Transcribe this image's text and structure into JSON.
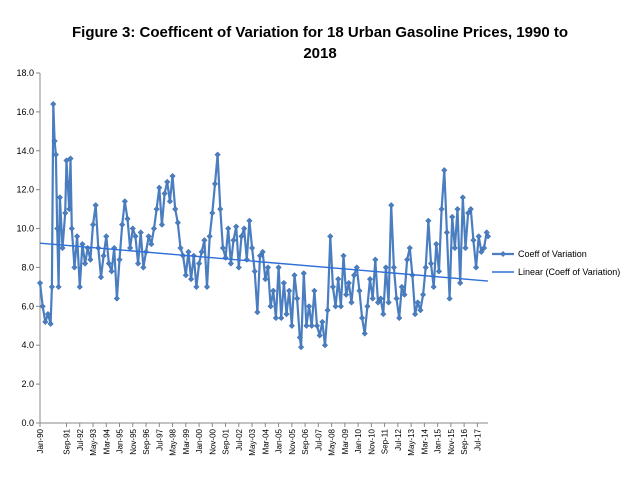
{
  "chart_data": {
    "type": "line",
    "title": [
      "Figure 3: Coefficent of Variation for 18 Urban Gasoline Prices, 1990 to",
      "2018"
    ],
    "xlabel": "",
    "ylabel": "",
    "ylim": [
      0,
      18
    ],
    "yticks": [
      "0.0",
      "2.0",
      "4.0",
      "6.0",
      "8.0",
      "10.0",
      "12.0",
      "14.0",
      "16.0",
      "18.0"
    ],
    "x_start": "1990-01",
    "x_end": "2018-03",
    "xtick_labels": [
      "Jan-90",
      "Sep-91",
      "May-93",
      "Jan-95",
      "Sep-96",
      "May-98",
      "Jan-00",
      "Sep-01",
      "May-03",
      "Jan-05",
      "Sep-06",
      "May-08",
      "Jan-10",
      "Sep-11",
      "May-13",
      "Jan-15",
      "Sep-16"
    ],
    "xtick_labels_offset": [
      "Jul-92",
      "Mar-94",
      "Nov-95",
      "Jul-97",
      "Mar-99",
      "Nov-00",
      "Jul-02",
      "Mar-04",
      "Nov-05",
      "Jul-07",
      "Mar-09",
      "Nov-10",
      "Jul-12",
      "Mar-14",
      "Nov-15",
      "Jul-17"
    ],
    "grid": false,
    "legend_position": "right",
    "colors": {
      "series": "#4a7ec0",
      "trend": "#2f6fd6"
    },
    "series": [
      {
        "name": "Coeff of Variation",
        "marker": "diamond",
        "anchors": [
          [
            "1990-01",
            7.2
          ],
          [
            "1990-03",
            6.0
          ],
          [
            "1990-05",
            5.2
          ],
          [
            "1990-07",
            5.6
          ],
          [
            "1990-09",
            5.1
          ],
          [
            "1990-10",
            7.0
          ],
          [
            "1990-11",
            16.4
          ],
          [
            "1990-12",
            14.5
          ],
          [
            "1991-01",
            13.8
          ],
          [
            "1991-02",
            10.0
          ],
          [
            "1991-03",
            7.0
          ],
          [
            "1991-04",
            11.6
          ],
          [
            "1991-06",
            9.0
          ],
          [
            "1991-08",
            10.8
          ],
          [
            "1991-09",
            13.5
          ],
          [
            "1991-10",
            12.3
          ],
          [
            "1991-11",
            11.0
          ],
          [
            "1991-12",
            13.6
          ],
          [
            "1992-01",
            10.0
          ],
          [
            "1992-03",
            8.0
          ],
          [
            "1992-05",
            9.6
          ],
          [
            "1992-07",
            7.0
          ],
          [
            "1992-09",
            9.2
          ],
          [
            "1992-11",
            8.2
          ],
          [
            "1993-01",
            9.0
          ],
          [
            "1993-03",
            8.4
          ],
          [
            "1993-05",
            10.2
          ],
          [
            "1993-07",
            11.2
          ],
          [
            "1993-09",
            9.0
          ],
          [
            "1993-11",
            7.5
          ],
          [
            "1994-01",
            8.6
          ],
          [
            "1994-03",
            9.6
          ],
          [
            "1994-05",
            8.2
          ],
          [
            "1994-07",
            7.8
          ],
          [
            "1994-09",
            9.0
          ],
          [
            "1994-11",
            6.4
          ],
          [
            "1995-01",
            8.4
          ],
          [
            "1995-03",
            10.2
          ],
          [
            "1995-05",
            11.4
          ],
          [
            "1995-07",
            10.5
          ],
          [
            "1995-09",
            9.0
          ],
          [
            "1995-11",
            10.0
          ],
          [
            "1996-01",
            9.6
          ],
          [
            "1996-03",
            8.2
          ],
          [
            "1996-05",
            9.8
          ],
          [
            "1996-07",
            8.0
          ],
          [
            "1996-09",
            8.8
          ],
          [
            "1996-11",
            9.6
          ],
          [
            "1997-01",
            9.2
          ],
          [
            "1997-03",
            10.0
          ],
          [
            "1997-05",
            11.0
          ],
          [
            "1997-07",
            12.1
          ],
          [
            "1997-09",
            10.2
          ],
          [
            "1997-11",
            11.8
          ],
          [
            "1998-01",
            12.4
          ],
          [
            "1998-03",
            11.4
          ],
          [
            "1998-05",
            12.7
          ],
          [
            "1998-07",
            11.0
          ],
          [
            "1998-09",
            10.3
          ],
          [
            "1998-11",
            9.0
          ],
          [
            "1999-01",
            8.6
          ],
          [
            "1999-03",
            7.6
          ],
          [
            "1999-05",
            8.8
          ],
          [
            "1999-07",
            7.4
          ],
          [
            "1999-09",
            8.6
          ],
          [
            "1999-11",
            7.0
          ],
          [
            "2000-01",
            8.2
          ],
          [
            "2000-03",
            8.8
          ],
          [
            "2000-05",
            9.4
          ],
          [
            "2000-07",
            7.0
          ],
          [
            "2000-09",
            9.6
          ],
          [
            "2000-11",
            10.8
          ],
          [
            "2001-01",
            12.3
          ],
          [
            "2001-03",
            13.8
          ],
          [
            "2001-05",
            11.0
          ],
          [
            "2001-07",
            9.0
          ],
          [
            "2001-09",
            8.5
          ],
          [
            "2001-11",
            10.0
          ],
          [
            "2002-01",
            8.2
          ],
          [
            "2002-03",
            9.4
          ],
          [
            "2002-05",
            10.1
          ],
          [
            "2002-07",
            8.0
          ],
          [
            "2002-09",
            9.6
          ],
          [
            "2002-11",
            10.0
          ],
          [
            "2003-01",
            8.4
          ],
          [
            "2003-03",
            10.4
          ],
          [
            "2003-05",
            9.0
          ],
          [
            "2003-07",
            7.8
          ],
          [
            "2003-09",
            5.7
          ],
          [
            "2003-11",
            8.6
          ],
          [
            "2004-01",
            8.8
          ],
          [
            "2004-03",
            7.4
          ],
          [
            "2004-05",
            8.0
          ],
          [
            "2004-07",
            6.0
          ],
          [
            "2004-09",
            6.8
          ],
          [
            "2004-11",
            5.4
          ],
          [
            "2005-01",
            8.0
          ],
          [
            "2005-03",
            5.4
          ],
          [
            "2005-05",
            7.2
          ],
          [
            "2005-07",
            5.6
          ],
          [
            "2005-09",
            6.8
          ],
          [
            "2005-11",
            5.0
          ],
          [
            "2006-01",
            7.6
          ],
          [
            "2006-03",
            6.4
          ],
          [
            "2006-05",
            4.4
          ],
          [
            "2006-06",
            3.9
          ],
          [
            "2006-08",
            7.7
          ],
          [
            "2006-10",
            5.0
          ],
          [
            "2006-12",
            6.0
          ],
          [
            "2007-02",
            5.0
          ],
          [
            "2007-04",
            6.8
          ],
          [
            "2007-06",
            5.0
          ],
          [
            "2007-08",
            4.5
          ],
          [
            "2007-10",
            5.2
          ],
          [
            "2007-12",
            4.0
          ],
          [
            "2008-02",
            5.8
          ],
          [
            "2008-04",
            9.6
          ],
          [
            "2008-06",
            7.0
          ],
          [
            "2008-08",
            6.0
          ],
          [
            "2008-10",
            7.4
          ],
          [
            "2008-12",
            6.0
          ],
          [
            "2009-02",
            8.6
          ],
          [
            "2009-04",
            6.6
          ],
          [
            "2009-06",
            7.2
          ],
          [
            "2009-08",
            6.2
          ],
          [
            "2009-10",
            7.6
          ],
          [
            "2009-12",
            8.0
          ],
          [
            "2010-02",
            6.8
          ],
          [
            "2010-04",
            5.4
          ],
          [
            "2010-06",
            4.6
          ],
          [
            "2010-08",
            6.0
          ],
          [
            "2010-10",
            7.4
          ],
          [
            "2010-12",
            6.4
          ],
          [
            "2011-02",
            8.4
          ],
          [
            "2011-04",
            6.2
          ],
          [
            "2011-06",
            6.4
          ],
          [
            "2011-08",
            5.6
          ],
          [
            "2011-10",
            8.0
          ],
          [
            "2011-12",
            6.2
          ],
          [
            "2012-02",
            11.2
          ],
          [
            "2012-04",
            8.0
          ],
          [
            "2012-06",
            6.4
          ],
          [
            "2012-08",
            5.4
          ],
          [
            "2012-10",
            7.0
          ],
          [
            "2012-12",
            6.6
          ],
          [
            "2013-02",
            8.4
          ],
          [
            "2013-04",
            9.0
          ],
          [
            "2013-06",
            7.6
          ],
          [
            "2013-08",
            5.6
          ],
          [
            "2013-10",
            6.2
          ],
          [
            "2013-12",
            5.8
          ],
          [
            "2014-02",
            6.6
          ],
          [
            "2014-04",
            8.0
          ],
          [
            "2014-06",
            10.4
          ],
          [
            "2014-08",
            8.2
          ],
          [
            "2014-10",
            7.0
          ],
          [
            "2014-12",
            9.2
          ],
          [
            "2015-02",
            7.8
          ],
          [
            "2015-04",
            11.0
          ],
          [
            "2015-06",
            13.0
          ],
          [
            "2015-08",
            9.8
          ],
          [
            "2015-10",
            6.4
          ],
          [
            "2015-12",
            10.6
          ],
          [
            "2016-02",
            9.0
          ],
          [
            "2016-04",
            11.0
          ],
          [
            "2016-06",
            7.2
          ],
          [
            "2016-08",
            11.6
          ],
          [
            "2016-10",
            9.0
          ],
          [
            "2016-12",
            10.8
          ],
          [
            "2017-02",
            11.0
          ],
          [
            "2017-04",
            9.4
          ],
          [
            "2017-06",
            8.0
          ],
          [
            "2017-08",
            9.6
          ],
          [
            "2017-10",
            8.8
          ],
          [
            "2017-12",
            9.0
          ],
          [
            "2018-02",
            9.8
          ],
          [
            "2018-03",
            9.6
          ]
        ]
      },
      {
        "name": "Linear (Coeff of Variation)",
        "type": "trendline",
        "start": [
          "1990-01",
          9.25
        ],
        "end": [
          "2018-03",
          7.3
        ]
      }
    ]
  }
}
